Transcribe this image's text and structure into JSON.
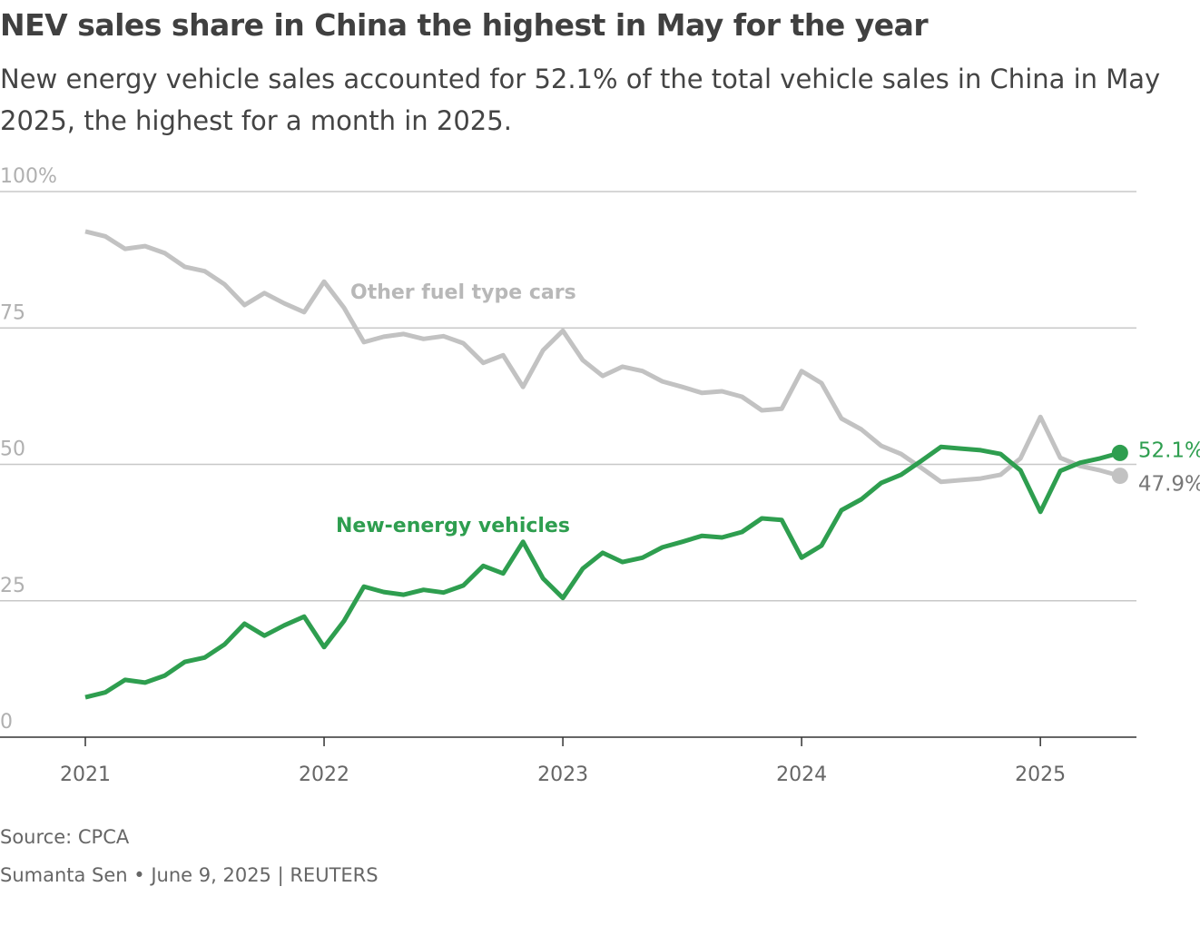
{
  "chart_data": {
    "type": "line",
    "title": "NEV sales share in China the highest in May for the year",
    "subtitle": "New energy vehicle sales accounted for 52.1% of the total vehicle sales in China in May 2025, the highest for a month in 2025.",
    "source": "Source: CPCA",
    "byline": "Sumanta Sen • June 9, 2025 | REUTERS",
    "categories": [
      "2021",
      null,
      null,
      null,
      null,
      null,
      null,
      null,
      null,
      null,
      null,
      null,
      "2022",
      null,
      null,
      null,
      null,
      null,
      null,
      null,
      null,
      null,
      null,
      null,
      "2023",
      null,
      null,
      null,
      null,
      null,
      null,
      null,
      null,
      null,
      null,
      null,
      "2024",
      null,
      null,
      null,
      null,
      null,
      null,
      null,
      null,
      null,
      null,
      null,
      "2025",
      null,
      null,
      null,
      null
    ],
    "series": [
      {
        "name": "New-energy vehicles",
        "color": "#2e9e4f",
        "values": [
          7.3,
          8.2,
          10.5,
          10.0,
          11.3,
          13.8,
          14.6,
          17.0,
          20.8,
          18.6,
          20.5,
          22.1,
          16.5,
          21.3,
          27.6,
          26.6,
          26.1,
          27.0,
          26.5,
          27.8,
          31.4,
          30.0,
          35.8,
          29.1,
          25.5,
          30.9,
          33.8,
          32.1,
          32.9,
          34.8,
          35.8,
          36.9,
          36.6,
          37.6,
          40.1,
          39.8,
          32.9,
          35.1,
          41.6,
          43.6,
          46.6,
          48.1,
          50.6,
          53.2,
          52.9,
          52.6,
          51.9,
          48.9,
          41.3,
          48.8,
          50.3,
          51.1,
          52.1
        ],
        "value_labels": [
          null,
          null,
          null,
          null,
          null,
          null,
          null,
          null,
          null,
          null,
          null,
          null,
          null,
          null,
          null,
          null,
          null,
          null,
          null,
          null,
          null,
          null,
          null,
          null,
          null,
          null,
          null,
          null,
          null,
          null,
          null,
          null,
          null,
          null,
          null,
          null,
          null,
          null,
          null,
          null,
          null,
          null,
          null,
          null,
          null,
          null,
          null,
          null,
          null,
          null,
          null,
          null,
          "52.1%"
        ]
      },
      {
        "name": "Other fuel type cars",
        "color": "#c2c2c2",
        "values": [
          92.7,
          91.8,
          89.5,
          90.0,
          88.7,
          86.2,
          85.4,
          83.0,
          79.2,
          81.4,
          79.5,
          77.9,
          83.5,
          78.7,
          72.4,
          73.4,
          73.9,
          73.0,
          73.5,
          72.2,
          68.6,
          70.0,
          64.2,
          70.9,
          74.5,
          69.1,
          66.2,
          67.9,
          67.1,
          65.2,
          64.2,
          63.1,
          63.4,
          62.4,
          59.9,
          60.2,
          67.1,
          64.9,
          58.4,
          56.4,
          53.4,
          51.9,
          49.4,
          46.8,
          47.1,
          47.4,
          48.1,
          51.1,
          58.7,
          51.2,
          49.7,
          48.9,
          47.9
        ],
        "value_labels": [
          null,
          null,
          null,
          null,
          null,
          null,
          null,
          null,
          null,
          null,
          null,
          null,
          null,
          null,
          null,
          null,
          null,
          null,
          null,
          null,
          null,
          null,
          null,
          null,
          null,
          null,
          null,
          null,
          null,
          null,
          null,
          null,
          null,
          null,
          null,
          null,
          null,
          null,
          null,
          null,
          null,
          null,
          null,
          null,
          null,
          null,
          null,
          null,
          null,
          null,
          null,
          null,
          "47.9%"
        ]
      }
    ],
    "ylim": [
      0,
      100
    ],
    "yticks": [
      0,
      25,
      50,
      75,
      {
        "value": 100,
        "label": "100%"
      }
    ],
    "grid": true
  }
}
